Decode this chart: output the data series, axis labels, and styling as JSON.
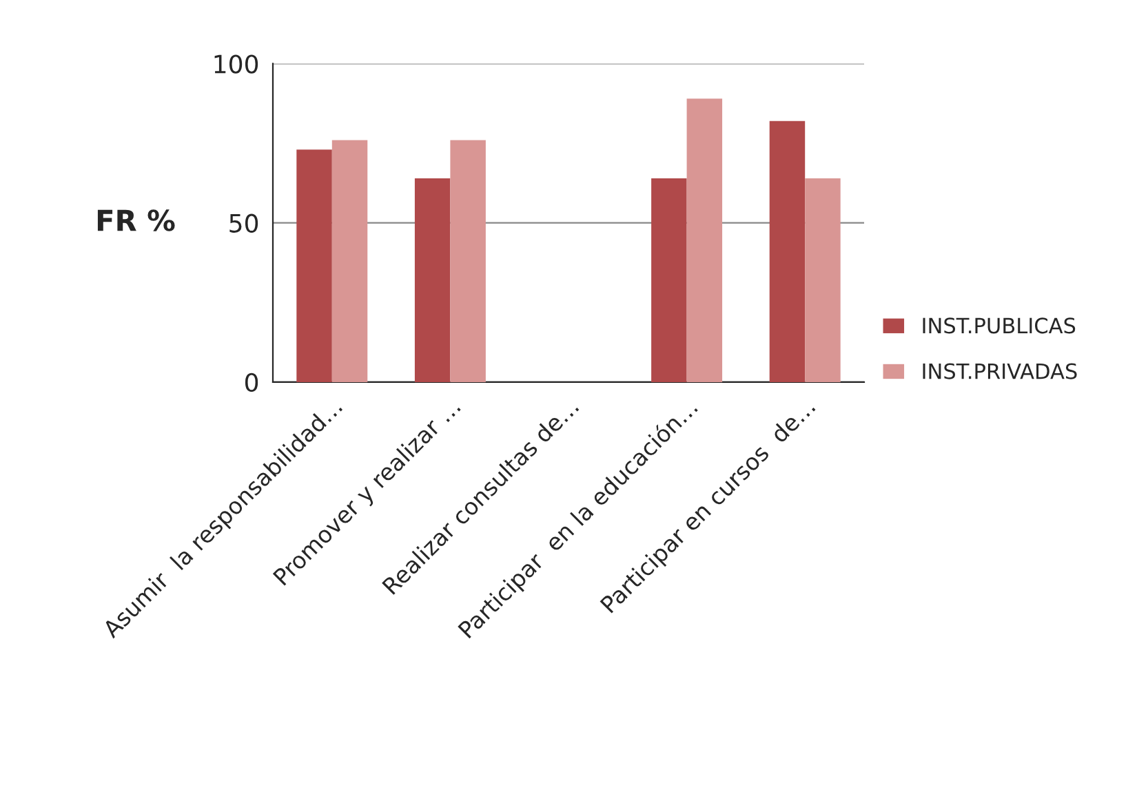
{
  "chart_data": {
    "type": "bar",
    "ylabel": "FR %",
    "categories": [
      "Asumir  la responsabilidad…",
      "Promover y realizar …",
      "Realizar consultas de…",
      "Participar  en la educación…",
      "Participar en cursos  de…"
    ],
    "series": [
      {
        "name": "INST.PUBLICAS",
        "color": "#b0494a",
        "values": [
          73,
          64,
          0,
          64,
          82
        ]
      },
      {
        "name": "INST.PRIVADAS",
        "color": "#d99694",
        "values": [
          76,
          76,
          0,
          89,
          64
        ]
      }
    ],
    "ylim": [
      0,
      100
    ],
    "yticks": [
      0,
      50,
      100
    ],
    "grid": "y",
    "legend": "right"
  }
}
